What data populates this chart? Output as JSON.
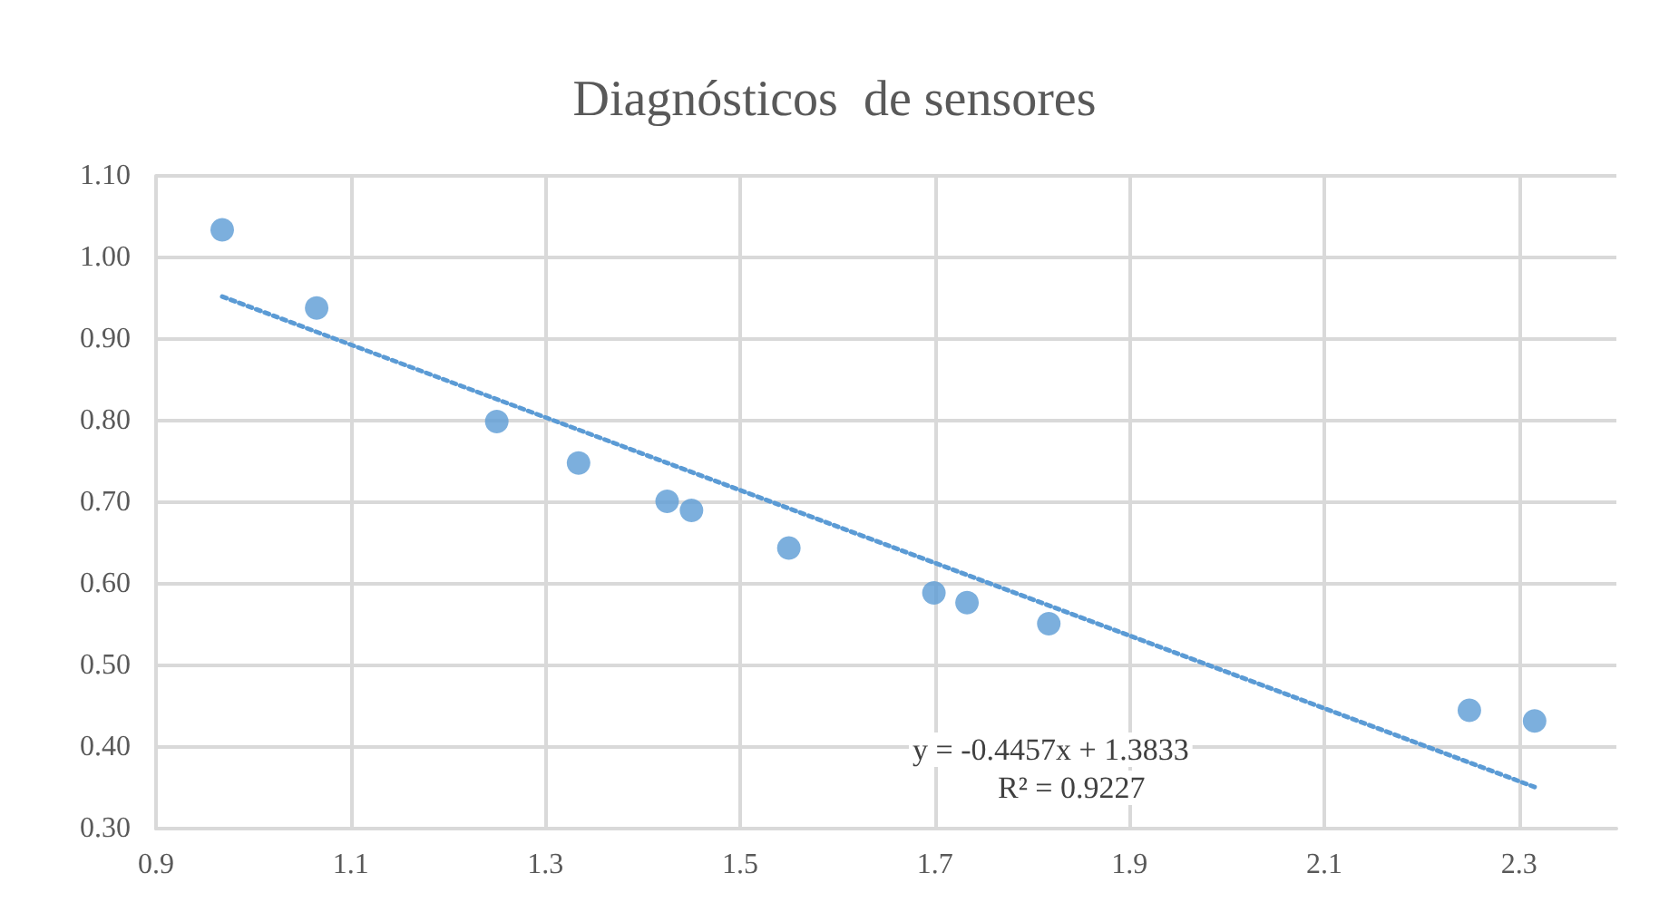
{
  "chart_data": {
    "type": "scatter",
    "title": "Diagnósticos  de sensores",
    "x": [
      0.968,
      1.065,
      1.25,
      1.334,
      1.425,
      1.45,
      1.55,
      1.699,
      1.733,
      1.817,
      2.249,
      2.316
    ],
    "series": [
      {
        "color": "#5b9bd5",
        "marker": "circle",
        "values": [
          1.034,
          0.938,
          0.799,
          0.748,
          0.701,
          0.69,
          0.644,
          0.589,
          0.577,
          0.551,
          0.445,
          0.432
        ]
      },
      {
        "type": "line",
        "color": "#5b9bd5",
        "line_style": "dotted",
        "marker": "none",
        "x": [
          0.968,
          2.316
        ],
        "values": [
          0.952,
          0.351
        ]
      }
    ],
    "xlim": [
      0.9,
      2.4
    ],
    "xticks": [
      0.9,
      1.1,
      1.3,
      1.5,
      1.7,
      1.9,
      2.1,
      2.3
    ],
    "ylim": [
      0.3,
      1.1
    ],
    "yticks": [
      {
        "value": 0.3,
        "label": "0.30"
      },
      {
        "value": 0.4,
        "label": "0.40"
      },
      {
        "value": 0.5,
        "label": "0.50"
      },
      {
        "value": 0.6,
        "label": "0.60"
      },
      {
        "value": 0.7,
        "label": "0.70"
      },
      {
        "value": 0.8,
        "label": "0.80"
      },
      {
        "value": 0.9,
        "label": "0.90"
      },
      {
        "value": 1.0,
        "label": "1.00"
      },
      {
        "value": 1.1,
        "label": "1.10"
      }
    ],
    "annotations": [
      "y = -0.4457x + 1.3833",
      "R² = 0.9227"
    ],
    "grid": true
  }
}
